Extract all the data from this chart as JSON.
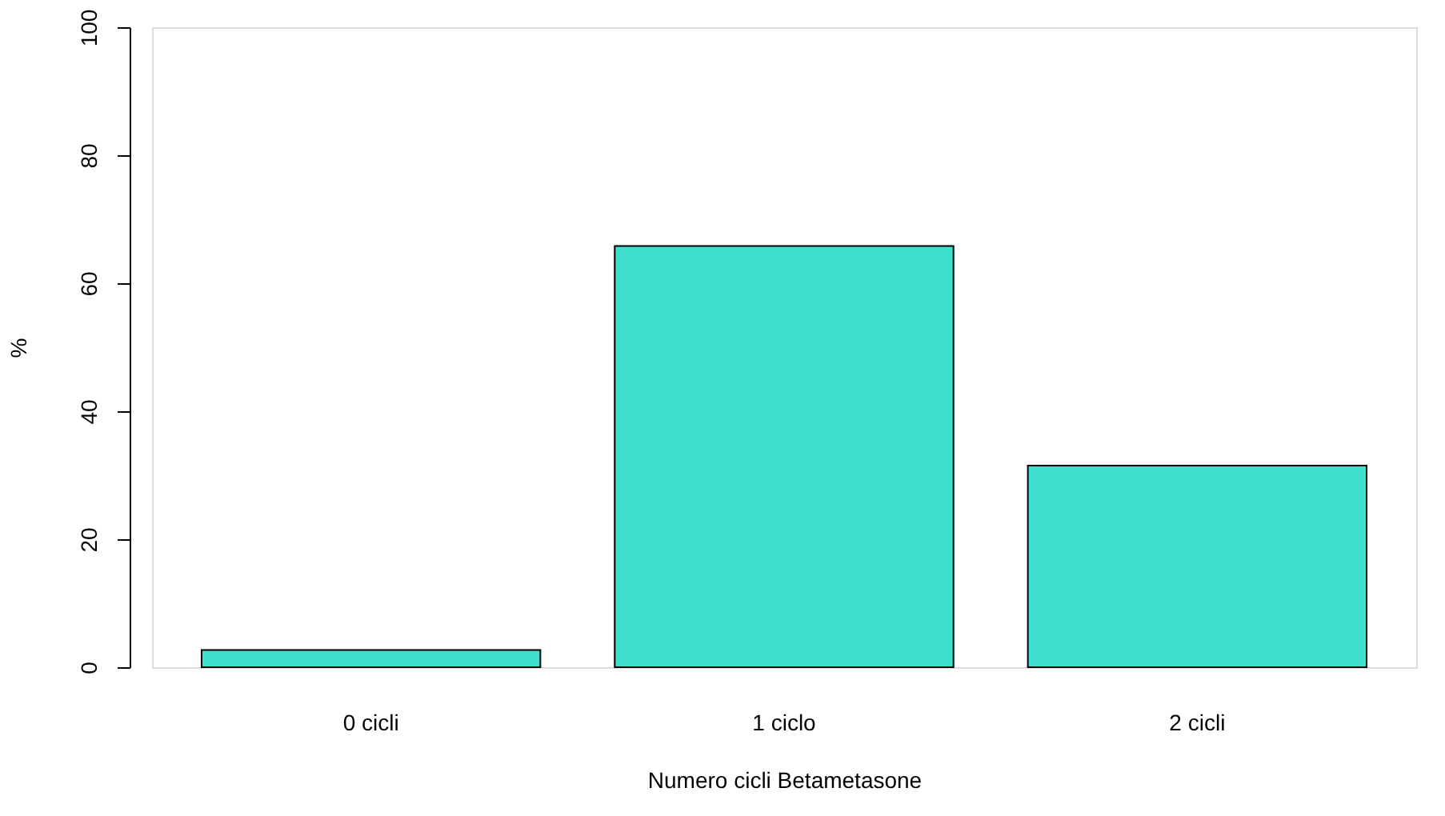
{
  "chart_data": {
    "type": "bar",
    "xlabel": "Numero cicli Betametasone",
    "ylabel": "%",
    "categories": [
      "0 cicli",
      "1 ciclo",
      "2 cicli"
    ],
    "values": [
      2.7,
      65.8,
      31.5
    ],
    "color": "#40e0d0",
    "ylim": [
      0,
      100
    ],
    "yticks": [
      0,
      20,
      40,
      60,
      80,
      100
    ],
    "grid": false
  }
}
